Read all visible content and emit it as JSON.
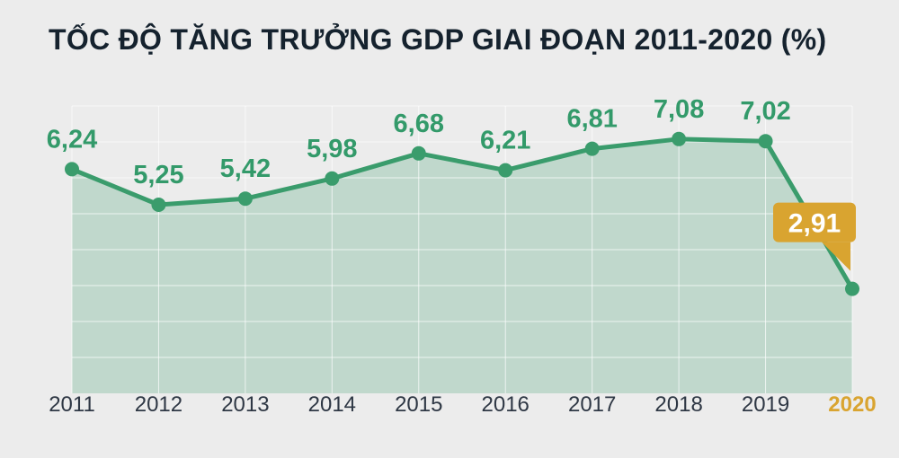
{
  "page": {
    "background": "#ececec"
  },
  "chart_data": {
    "type": "area",
    "title": "TỐC ĐỘ TĂNG TRƯỞNG GDP GIAI ĐOẠN 2011-2020 (%)",
    "categories": [
      "2011",
      "2012",
      "2013",
      "2014",
      "2015",
      "2016",
      "2017",
      "2018",
      "2019",
      "2020"
    ],
    "values": [
      6.24,
      5.25,
      5.42,
      5.98,
      6.68,
      6.21,
      6.81,
      7.08,
      7.02,
      2.91
    ],
    "value_labels": [
      "6,24",
      "5,25",
      "5,42",
      "5,98",
      "6,68",
      "6,21",
      "6,81",
      "7,08",
      "7,02",
      "2,91"
    ],
    "highlight_index": 9,
    "highlight_label": "2,91",
    "xlabel": "",
    "ylabel": "",
    "ylim": [
      0,
      8
    ],
    "grid": true,
    "legend": "none",
    "colors": {
      "line": "#3a9c6c",
      "area_fill": "#3a9c6c",
      "point": "#3a9c6c",
      "value_label": "#339a6a",
      "axis_label": "#2e3744",
      "highlight": "#d9a430",
      "highlight_text": "#ffffff",
      "title": "#15222e",
      "background": "#ececec",
      "grid_line": "rgba(255,255,255,0.7)"
    }
  }
}
